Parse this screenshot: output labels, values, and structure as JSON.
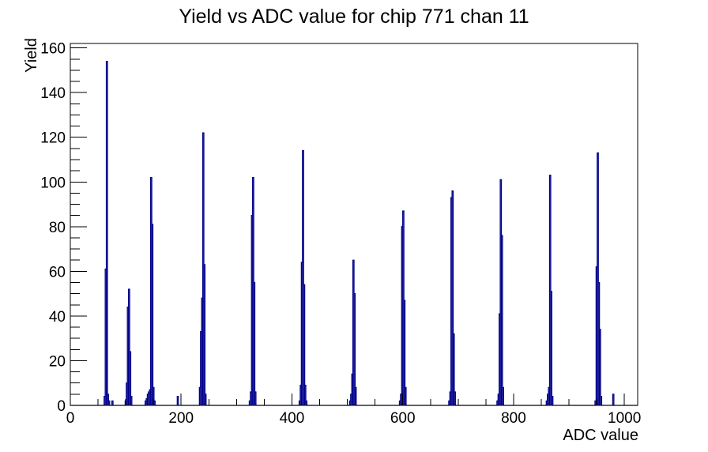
{
  "title": "Yield vs ADC value for chip 771 chan 11",
  "colors": {
    "histogram_line": "#00008b",
    "axis": "#000000",
    "background": "#ffffff"
  },
  "chart_data": {
    "type": "bar",
    "subtype": "step-outline-histogram",
    "title": "Yield vs ADC value for chip 771 chan 11",
    "xlabel": "ADC value",
    "ylabel": "Yield",
    "xlim": [
      0,
      1024
    ],
    "ylim": [
      0,
      162
    ],
    "grid": false,
    "legend": "none",
    "xticks_major": [
      0,
      200,
      400,
      600,
      800,
      1000
    ],
    "xticks_minor_step": 50,
    "yticks_major": [
      0,
      20,
      40,
      60,
      80,
      100,
      120,
      140,
      160
    ],
    "yticks_minor_step": 5,
    "bin_width": 2,
    "peaks": [
      {
        "adc": 66,
        "yield": 154
      },
      {
        "adc": 106,
        "yield": 52
      },
      {
        "adc": 146,
        "yield": 102
      },
      {
        "adc": 240,
        "yield": 122
      },
      {
        "adc": 330,
        "yield": 102
      },
      {
        "adc": 420,
        "yield": 114
      },
      {
        "adc": 511,
        "yield": 65
      },
      {
        "adc": 601,
        "yield": 87
      },
      {
        "adc": 690,
        "yield": 96
      },
      {
        "adc": 777,
        "yield": 101
      },
      {
        "adc": 866,
        "yield": 103
      },
      {
        "adc": 952,
        "yield": 113
      }
    ],
    "bins": [
      [
        62,
        4
      ],
      [
        64,
        61
      ],
      [
        66,
        154
      ],
      [
        68,
        5
      ],
      [
        70,
        2
      ],
      [
        76,
        2
      ],
      [
        100,
        2
      ],
      [
        102,
        10
      ],
      [
        104,
        44
      ],
      [
        106,
        52
      ],
      [
        108,
        24
      ],
      [
        110,
        4
      ],
      [
        136,
        2
      ],
      [
        138,
        3
      ],
      [
        140,
        5
      ],
      [
        142,
        6
      ],
      [
        144,
        7
      ],
      [
        146,
        102
      ],
      [
        148,
        81
      ],
      [
        150,
        8
      ],
      [
        152,
        2
      ],
      [
        194,
        4
      ],
      [
        234,
        8
      ],
      [
        236,
        33
      ],
      [
        238,
        48
      ],
      [
        240,
        122
      ],
      [
        242,
        63
      ],
      [
        244,
        5
      ],
      [
        324,
        2
      ],
      [
        326,
        6
      ],
      [
        328,
        85
      ],
      [
        330,
        102
      ],
      [
        332,
        55
      ],
      [
        334,
        6
      ],
      [
        414,
        2
      ],
      [
        416,
        9
      ],
      [
        418,
        64
      ],
      [
        420,
        114
      ],
      [
        422,
        54
      ],
      [
        424,
        9
      ],
      [
        426,
        2
      ],
      [
        505,
        2
      ],
      [
        507,
        5
      ],
      [
        509,
        14
      ],
      [
        511,
        65
      ],
      [
        513,
        50
      ],
      [
        515,
        8
      ],
      [
        595,
        2
      ],
      [
        597,
        5
      ],
      [
        599,
        80
      ],
      [
        601,
        87
      ],
      [
        603,
        47
      ],
      [
        605,
        8
      ],
      [
        684,
        2
      ],
      [
        686,
        6
      ],
      [
        688,
        93
      ],
      [
        690,
        96
      ],
      [
        692,
        32
      ],
      [
        694,
        6
      ],
      [
        771,
        2
      ],
      [
        773,
        5
      ],
      [
        775,
        41
      ],
      [
        777,
        101
      ],
      [
        779,
        76
      ],
      [
        781,
        8
      ],
      [
        860,
        2
      ],
      [
        862,
        5
      ],
      [
        864,
        8
      ],
      [
        866,
        103
      ],
      [
        868,
        51
      ],
      [
        870,
        4
      ],
      [
        948,
        2
      ],
      [
        950,
        62
      ],
      [
        952,
        113
      ],
      [
        954,
        55
      ],
      [
        956,
        34
      ],
      [
        958,
        4
      ],
      [
        980,
        5
      ]
    ]
  }
}
